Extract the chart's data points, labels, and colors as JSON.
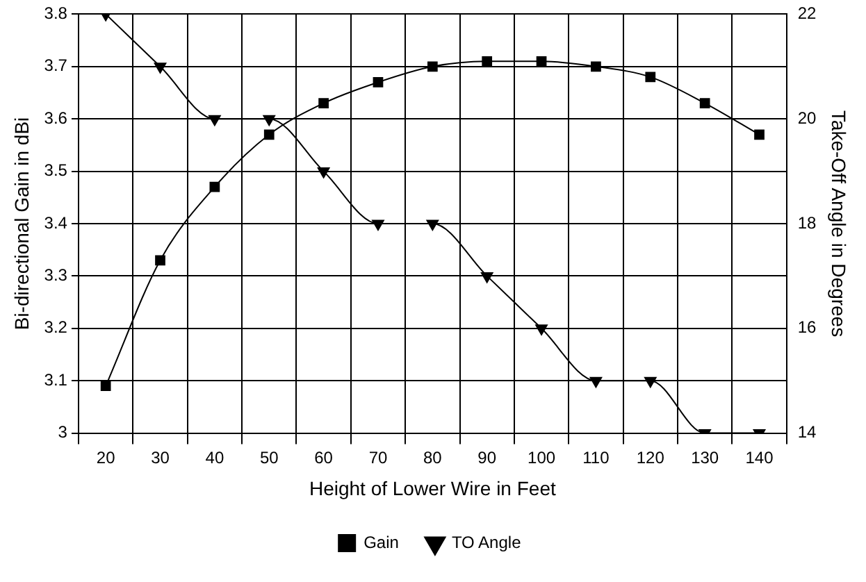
{
  "chart_data": {
    "type": "line",
    "xlabel": "Height of Lower Wire in Feet",
    "ylabel": "Bi-directional Gain in dBi",
    "y2label": "Take-Off Angle in Degrees",
    "categories": [
      "20",
      "30",
      "40",
      "50",
      "60",
      "70",
      "80",
      "90",
      "100",
      "110",
      "120",
      "130",
      "140"
    ],
    "series": [
      {
        "name": "Gain",
        "color": "#000000",
        "marker": "square",
        "values": [
          3.09,
          3.33,
          3.47,
          3.57,
          3.63,
          3.67,
          3.7,
          3.71,
          3.71,
          3.7,
          3.68,
          3.63,
          3.57
        ]
      },
      {
        "name": "TO Angle",
        "color": "#000000",
        "marker": "triangle",
        "axis": "y2",
        "values": [
          22,
          21,
          20,
          20,
          19,
          18,
          18,
          17,
          16,
          15,
          15,
          14,
          14
        ]
      }
    ],
    "ylim": [
      3,
      3.8
    ],
    "yticks": [
      3,
      3.1,
      3.2,
      3.3,
      3.4,
      3.5,
      3.6,
      3.7,
      3.8
    ],
    "y2lim": [
      14,
      22
    ],
    "y2ticks": [
      14,
      16,
      18,
      20,
      22
    ],
    "grid": true,
    "legend": "bottom",
    "line_style": "solid"
  }
}
